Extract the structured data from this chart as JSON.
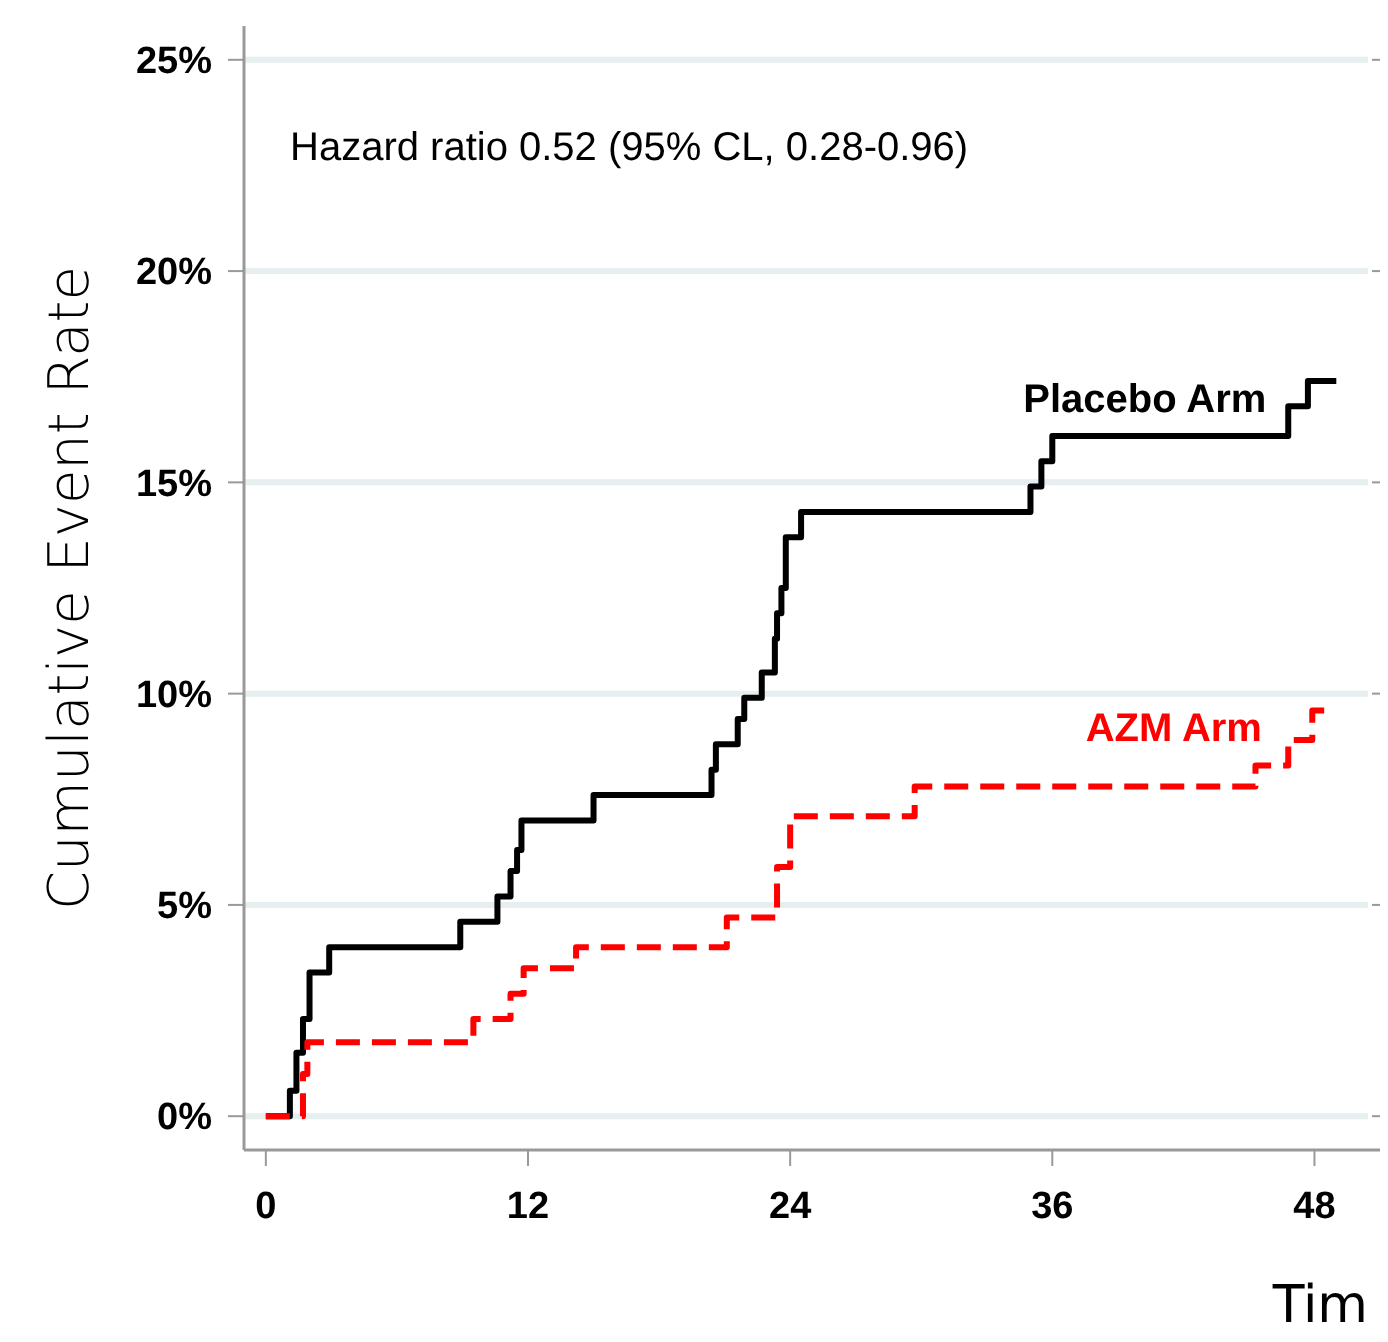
{
  "chart_data": {
    "type": "step",
    "xlabel": "Tim",
    "ylabel": "Cumulative Event Rate",
    "annotations": [
      "Hazard ratio 0.52 (95% CL, 0.28-0.96)"
    ],
    "xlim": [
      -1,
      51
    ],
    "ylim": [
      -0.8,
      25.8
    ],
    "xticks": [
      0,
      12,
      24,
      36,
      48
    ],
    "yticks": [
      {
        "value": 0,
        "label": "0%"
      },
      {
        "value": 5,
        "label": "5%"
      },
      {
        "value": 10,
        "label": "10%"
      },
      {
        "value": 15,
        "label": "15%"
      },
      {
        "value": 20,
        "label": "20%"
      },
      {
        "value": 25,
        "label": "25%"
      }
    ],
    "grid": "y",
    "legend": false,
    "series": [
      {
        "name": "Placebo Arm",
        "color": "#000000",
        "line_style": "solid",
        "x": [
          0,
          1.1,
          1.4,
          1.7,
          2.0,
          2.9,
          8.9,
          10.6,
          11.2,
          11.5,
          11.7,
          15.0,
          20.4,
          20.6,
          21.6,
          21.9,
          22.7,
          23.3,
          23.4,
          23.6,
          23.8,
          24.5,
          35.0,
          35.5,
          36.0,
          46.8,
          47.7,
          49.0
        ],
        "values": [
          0,
          0.6,
          1.5,
          2.3,
          3.4,
          4.0,
          4.6,
          5.2,
          5.8,
          6.3,
          7.0,
          7.6,
          8.2,
          8.8,
          9.4,
          9.9,
          10.5,
          11.3,
          11.9,
          12.5,
          13.7,
          14.3,
          14.9,
          15.5,
          16.1,
          16.8,
          17.4,
          17.4
        ]
      },
      {
        "name": "AZM Arm",
        "color": "#ff0000",
        "line_style": "dashed",
        "x": [
          0,
          1.7,
          1.9,
          9.5,
          11.2,
          11.8,
          14.2,
          21.1,
          23.4,
          24.0,
          29.7,
          45.3,
          46.8,
          47.9,
          48.8
        ],
        "values": [
          0,
          1.0,
          1.75,
          2.3,
          2.9,
          3.5,
          4.0,
          4.7,
          5.9,
          7.1,
          7.8,
          8.3,
          8.9,
          9.6,
          9.6
        ]
      }
    ]
  }
}
